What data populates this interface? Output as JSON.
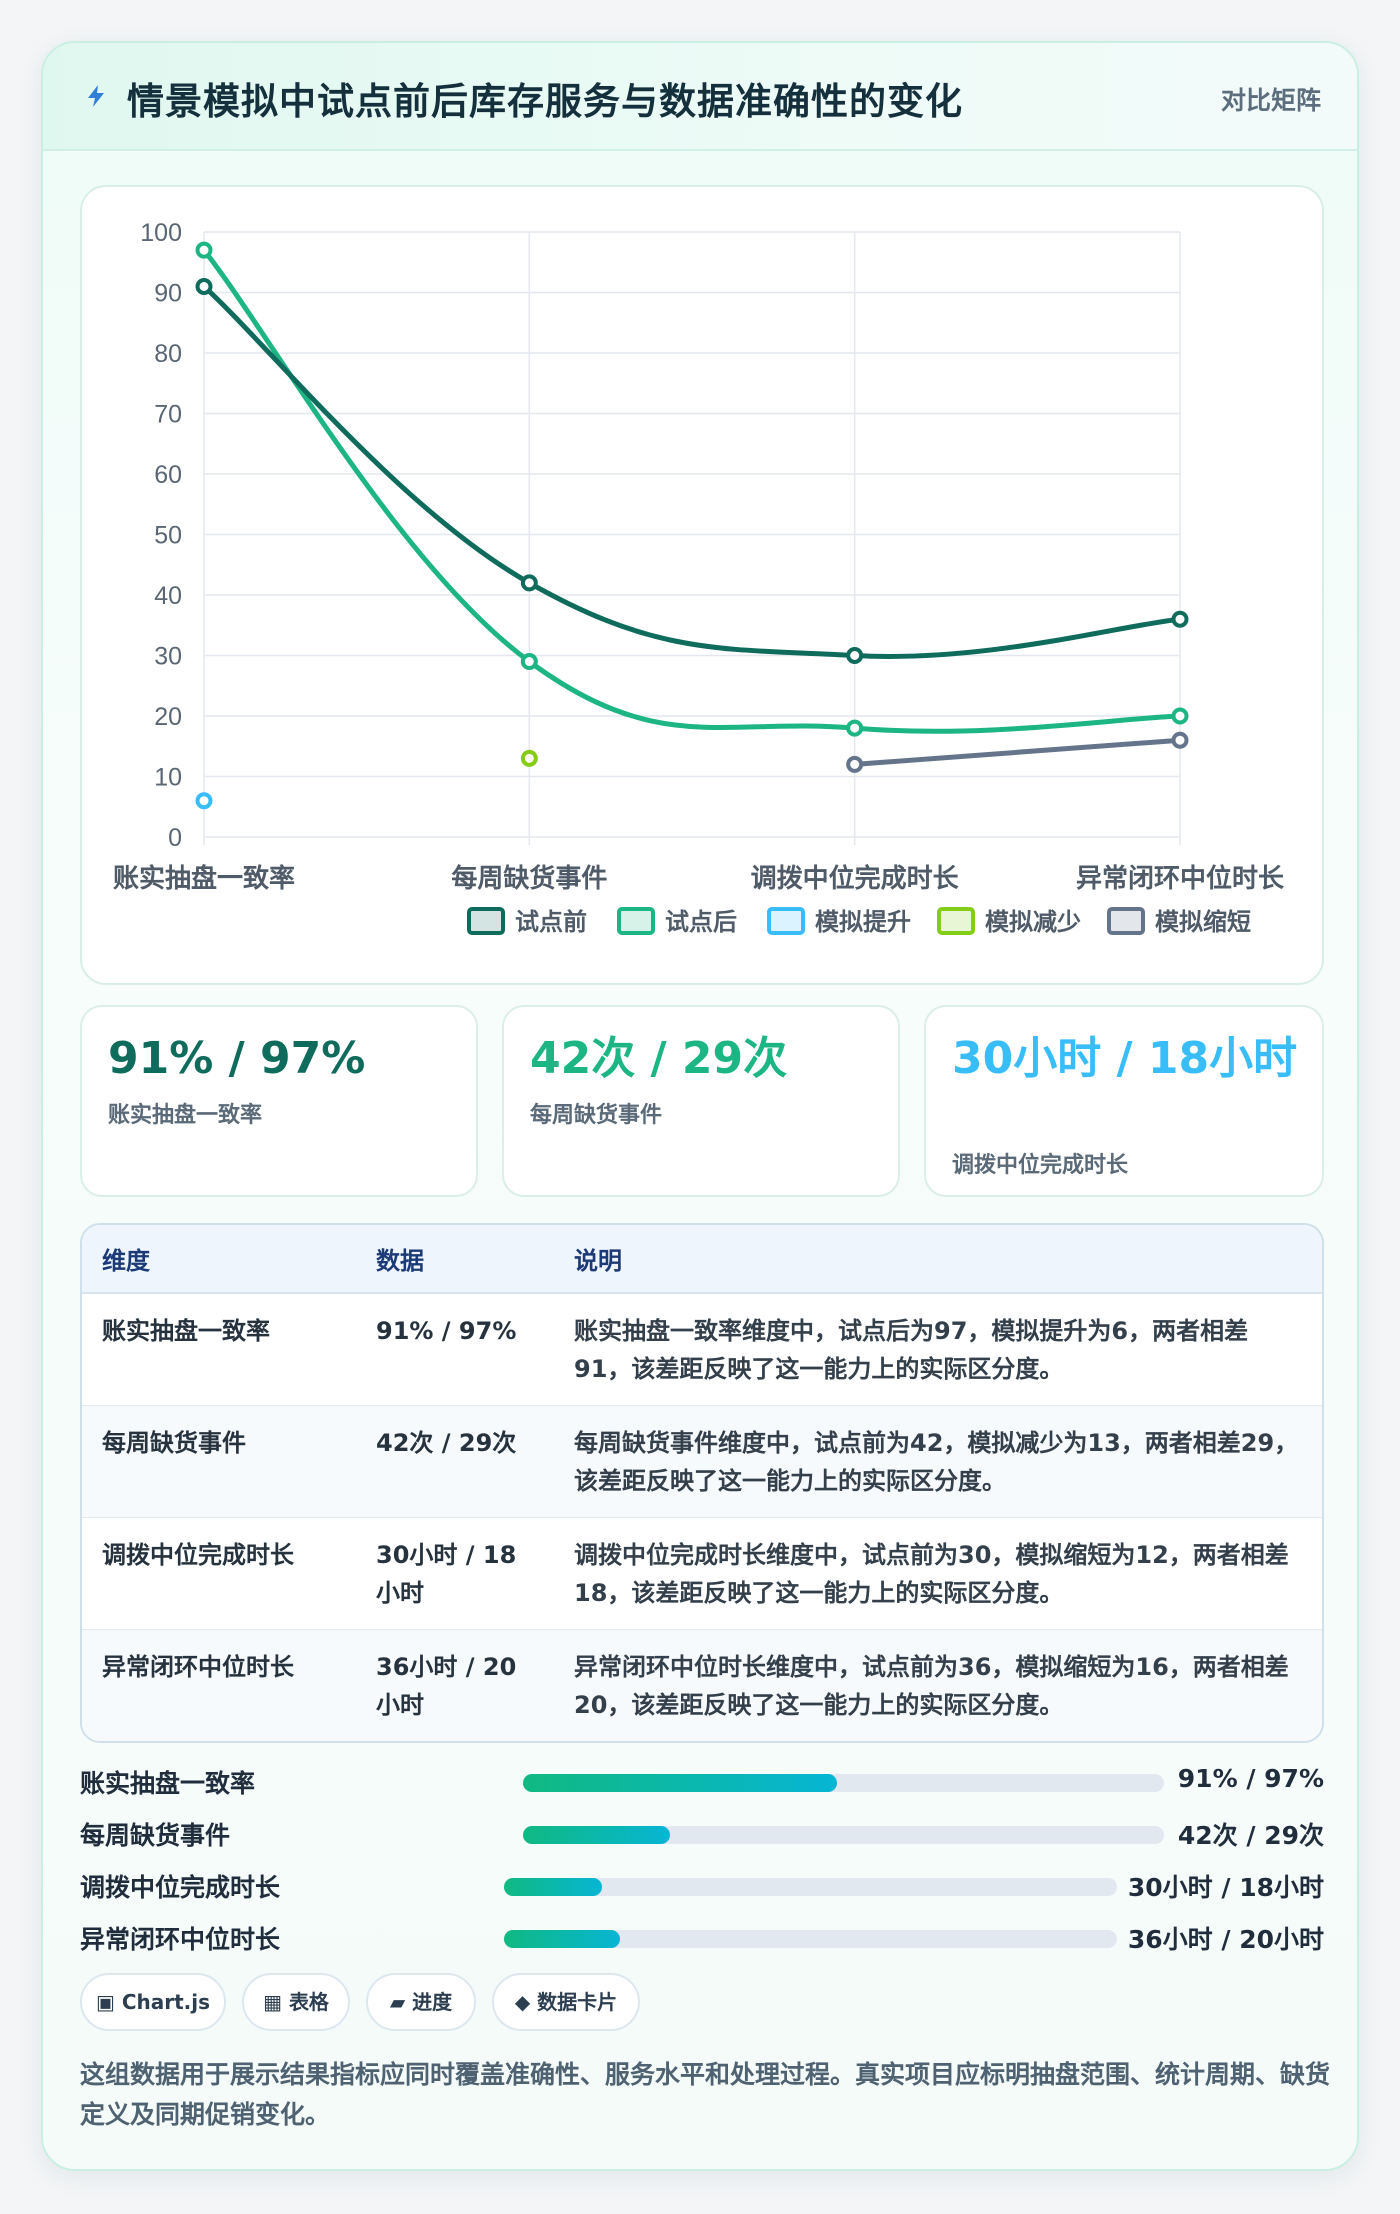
{
  "header": {
    "title": "情景模拟中试点前后库存服务与数据准确性的变化",
    "tag": "对比矩阵"
  },
  "colors": {
    "before": "#0f6b5c",
    "after": "#1db584",
    "sim_up": "#38bdf8",
    "sim_down": "#84cc16",
    "sim_short": "#64748b"
  },
  "chart_data": {
    "type": "line",
    "categories": [
      "账实抽盘一致率",
      "每周缺货事件",
      "调拨中位完成时长",
      "异常闭环中位时长"
    ],
    "ylim": [
      0,
      100
    ],
    "yticks": [
      0,
      10,
      20,
      30,
      40,
      50,
      60,
      70,
      80,
      90,
      100
    ],
    "series": [
      {
        "name": "试点前",
        "color": "#0f6b5c",
        "values": [
          91,
          42,
          30,
          36
        ]
      },
      {
        "name": "试点后",
        "color": "#1db584",
        "values": [
          97,
          29,
          18,
          20
        ]
      },
      {
        "name": "模拟提升",
        "color": "#38bdf8",
        "values": [
          6,
          null,
          null,
          null
        ]
      },
      {
        "name": "模拟减少",
        "color": "#84cc16",
        "values": [
          null,
          13,
          null,
          null
        ]
      },
      {
        "name": "模拟缩短",
        "color": "#64748b",
        "values": [
          null,
          null,
          12,
          16
        ]
      }
    ],
    "legend": "bottom",
    "grid": true
  },
  "kpis": [
    {
      "value": "91% / 97%",
      "label": "账实抽盘一致率",
      "color": "#0f6b5c"
    },
    {
      "value": "42次 / 29次",
      "label": "每周缺货事件",
      "color": "#1db584"
    },
    {
      "value": "30小时 / 18小时",
      "label": "调拨中位完成时长",
      "color": "#38bdf8"
    }
  ],
  "table": {
    "headers": [
      "维度",
      "数据",
      "说明"
    ],
    "rows": [
      [
        "账实抽盘一致率",
        "91% / 97%",
        "账实抽盘一致率维度中，试点后为97，模拟提升为6，两者相差91，该差距反映了这一能力上的实际区分度。"
      ],
      [
        "每周缺货事件",
        "42次 / 29次",
        "每周缺货事件维度中，试点前为42，模拟减少为13，两者相差29，该差距反映了这一能力上的实际区分度。"
      ],
      [
        "调拨中位完成时长",
        "30小时 / 18小时",
        "调拨中位完成时长维度中，试点前为30，模拟缩短为12，两者相差18，该差距反映了这一能力上的实际区分度。"
      ],
      [
        "异常闭环中位时长",
        "36小时 / 20小时",
        "异常闭环中位时长维度中，试点前为36，模拟缩短为16，两者相差20，该差距反映了这一能力上的实际区分度。"
      ]
    ]
  },
  "progress": [
    {
      "label": "账实抽盘一致率",
      "value": "91% / 97%",
      "fraction": 0.49
    },
    {
      "label": "每周缺货事件",
      "value": "42次 / 29次",
      "fraction": 0.23
    },
    {
      "label": "调拨中位完成时长",
      "value": "30小时 / 18小时",
      "fraction": 0.16
    },
    {
      "label": "异常闭环中位时长",
      "value": "36小时 / 20小时",
      "fraction": 0.19
    }
  ],
  "pills": [
    {
      "icon": "▣",
      "label": "Chart.js"
    },
    {
      "icon": "▦",
      "label": "表格"
    },
    {
      "icon": "▰",
      "label": "进度"
    },
    {
      "icon": "◆",
      "label": "数据卡片"
    }
  ],
  "footnote": "这组数据用于展示结果指标应同时覆盖准确性、服务水平和处理过程。真实项目应标明抽盘范围、统计周期、缺货定义及同期促销变化。"
}
